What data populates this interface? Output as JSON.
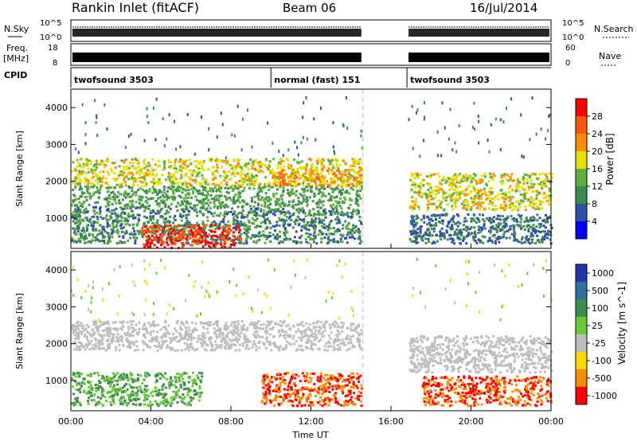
{
  "header": {
    "title": "Rankin Inlet (fitACF)",
    "beam": "Beam 06",
    "date": "16/Jul/2014"
  },
  "noise_panel": {
    "left_label": "N.Sky",
    "right_label": "N.Search",
    "top_tick": "10^5",
    "bottom_tick": "10^0"
  },
  "freq_panel": {
    "left_label": "Freq.",
    "left_unit": "[MHz]",
    "left_top_tick": "18",
    "left_bottom_tick": "8",
    "right_label": "Nave",
    "right_top_tick": "60",
    "right_bottom_tick": "0"
  },
  "cpid_panel": {
    "label": "CPID",
    "segments": [
      {
        "name": "twofsound 3503",
        "start_hour": 0
      },
      {
        "name": "normal (fast) 151",
        "start_hour": 10
      },
      {
        "name": "twofsound 3503",
        "start_hour": 16.8
      }
    ]
  },
  "x_axis": {
    "label": "Time UT",
    "ticks": [
      "00:00",
      "04:00",
      "08:00",
      "12:00",
      "16:00",
      "20:00",
      "00:00"
    ]
  },
  "power_panel": {
    "ylabel": "Slant Range [km]",
    "yticks": [
      "1000",
      "2000",
      "3000",
      "4000"
    ],
    "colorbar_label": "Power [dB]",
    "colorbar_ticks": [
      "4",
      "8",
      "12",
      "16",
      "20",
      "24",
      "28"
    ],
    "colors": [
      "#0000ff",
      "#2f4faa",
      "#3c8c50",
      "#5bb13c",
      "#e6e000",
      "#ff8c00",
      "#ff5a00",
      "#ff0000"
    ]
  },
  "velocity_panel": {
    "ylabel": "Slant Range [km]",
    "yticks": [
      "1000",
      "2000",
      "3000",
      "4000"
    ],
    "colorbar_label": "Velocity [m s^-1]",
    "colorbar_ticks": [
      "1000",
      "500",
      "100",
      "25",
      "-25",
      "-100",
      "-500",
      "-1000"
    ],
    "colors": [
      "#2234b4",
      "#2f6fa8",
      "#3c8c50",
      "#66cc33",
      "#bdbdbd",
      "#ffd700",
      "#ff8c00",
      "#ff0000"
    ]
  },
  "chart_data": {
    "type": "heatmap",
    "x_range_hours": [
      0,
      24
    ],
    "y_range_km": [
      180,
      4500
    ],
    "data_gaps_hours": [
      [
        14.6,
        16.8
      ]
    ],
    "power_layers": [
      {
        "t0": 0,
        "t1": 14.5,
        "r0": 1850,
        "r1": 2600,
        "power_db": 18
      },
      {
        "t0": 0,
        "t1": 14.5,
        "r0": 1300,
        "r1": 1850,
        "power_db": 12
      },
      {
        "t0": 0,
        "t1": 14.5,
        "r0": 300,
        "r1": 1300,
        "power_db": 10
      },
      {
        "t0": 3.5,
        "t1": 8.5,
        "r0": 180,
        "r1": 800,
        "power_db": 28
      },
      {
        "t0": 10,
        "t1": 14.5,
        "r0": 1850,
        "r1": 2300,
        "power_db": 22
      },
      {
        "t0": 16.9,
        "t1": 24,
        "r0": 1200,
        "r1": 2200,
        "power_db": 18
      },
      {
        "t0": 16.9,
        "t1": 24,
        "r0": 300,
        "r1": 1100,
        "power_db": 8
      }
    ],
    "velocity_layers": [
      {
        "t0": 0,
        "t1": 14.5,
        "r0": 1800,
        "r1": 2600,
        "velocity": 0
      },
      {
        "t0": 0,
        "t1": 6.5,
        "r0": 300,
        "r1": 1200,
        "velocity": 100
      },
      {
        "t0": 9.5,
        "t1": 14.5,
        "r0": 300,
        "r1": 1200,
        "velocity": -500
      },
      {
        "t0": 16.9,
        "t1": 24,
        "r0": 1200,
        "r1": 2200,
        "velocity": 0
      },
      {
        "t0": 17.5,
        "t1": 24,
        "r0": 300,
        "r1": 1100,
        "velocity": -500
      }
    ]
  }
}
